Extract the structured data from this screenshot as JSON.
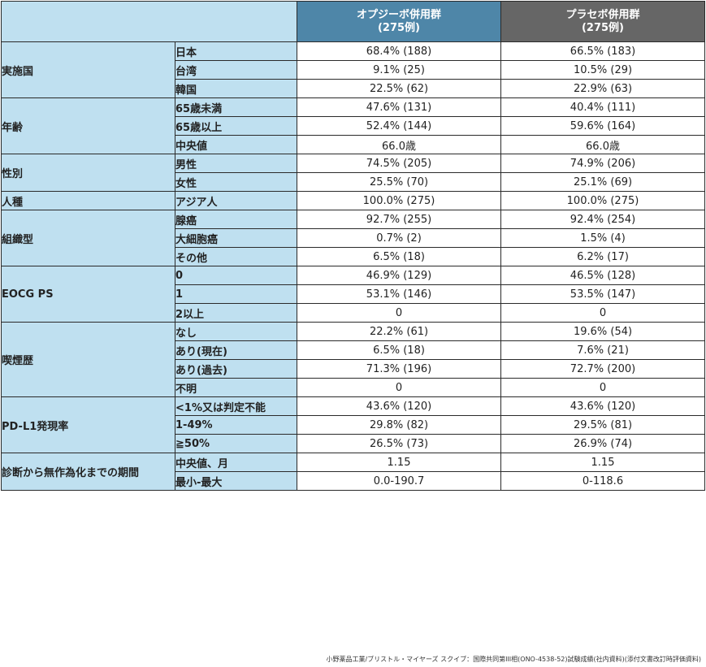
{
  "header": {
    "opdivo": {
      "line1": "オプジーボ併用群",
      "line2": "(275例)"
    },
    "placebo": {
      "line1": "プラセボ併用群",
      "line2": "(275例)"
    }
  },
  "groups": [
    {
      "label": "実施国",
      "rows": [
        {
          "sub": "日本",
          "opdivo": "68.4% (188)",
          "placebo": "66.5% (183)"
        },
        {
          "sub": "台湾",
          "opdivo": "9.1% (25)",
          "placebo": "10.5% (29)"
        },
        {
          "sub": "韓国",
          "opdivo": "22.5% (62)",
          "placebo": "22.9% (63)"
        }
      ]
    },
    {
      "label": "年齢",
      "rows": [
        {
          "sub": "65歳未満",
          "opdivo": "47.6% (131)",
          "placebo": "40.4% (111)"
        },
        {
          "sub": "65歳以上",
          "opdivo": "52.4% (144)",
          "placebo": "59.6% (164)"
        },
        {
          "sub": "中央値",
          "opdivo": "66.0歳",
          "placebo": "66.0歳"
        }
      ]
    },
    {
      "label": "性別",
      "rows": [
        {
          "sub": "男性",
          "opdivo": "74.5% (205)",
          "placebo": "74.9% (206)"
        },
        {
          "sub": "女性",
          "opdivo": "25.5% (70)",
          "placebo": "25.1% (69)"
        }
      ]
    },
    {
      "label": "人種",
      "rows": [
        {
          "sub": "アジア人",
          "opdivo": "100.0% (275)",
          "placebo": "100.0% (275)"
        }
      ]
    },
    {
      "label": "組織型",
      "rows": [
        {
          "sub": "腺癌",
          "opdivo": "92.7% (255)",
          "placebo": "92.4% (254)"
        },
        {
          "sub": "大細胞癌",
          "opdivo": "0.7% (2)",
          "placebo": "1.5% (4)"
        },
        {
          "sub": "その他",
          "opdivo": "6.5% (18)",
          "placebo": "6.2% (17)"
        }
      ]
    },
    {
      "label": "EOCG PS",
      "rows": [
        {
          "sub": "0",
          "opdivo": "46.9% (129)",
          "placebo": "46.5% (128)"
        },
        {
          "sub": "1",
          "opdivo": "53.1% (146)",
          "placebo": "53.5% (147)"
        },
        {
          "sub": "2以上",
          "opdivo": "0",
          "placebo": "0"
        }
      ]
    },
    {
      "label": "喫煙歴",
      "rows": [
        {
          "sub": "なし",
          "opdivo": "22.2% (61)",
          "placebo": "19.6% (54)"
        },
        {
          "sub": "あり(現在)",
          "opdivo": "6.5% (18)",
          "placebo": "7.6% (21)"
        },
        {
          "sub": "あり(過去)",
          "opdivo": "71.3% (196)",
          "placebo": "72.7% (200)"
        },
        {
          "sub": "不明",
          "opdivo": "0",
          "placebo": "0"
        }
      ]
    },
    {
      "label": "PD-L1発現率",
      "rows": [
        {
          "sub": "<1%又は判定不能",
          "opdivo": "43.6% (120)",
          "placebo": "43.6% (120)"
        },
        {
          "sub": "1-49%",
          "opdivo": "29.8% (82)",
          "placebo": "29.5% (81)"
        },
        {
          "sub": "≧50%",
          "opdivo": "26.5% (73)",
          "placebo": "26.9% (74)"
        }
      ]
    },
    {
      "label": "診断から無作為化までの期間",
      "rows": [
        {
          "sub": "中央値、月",
          "opdivo": "1.15",
          "placebo": "1.15"
        },
        {
          "sub": "最小-最大",
          "opdivo": "0.0-190.7",
          "placebo": "0-118.6"
        }
      ]
    }
  ],
  "footnote": "小野薬品工業/ブリストル・マイヤーズ スクイブ：国際共同第III相(ONO-4538-52)試験成績(社内資料)(添付文書改訂時評価資料)"
}
